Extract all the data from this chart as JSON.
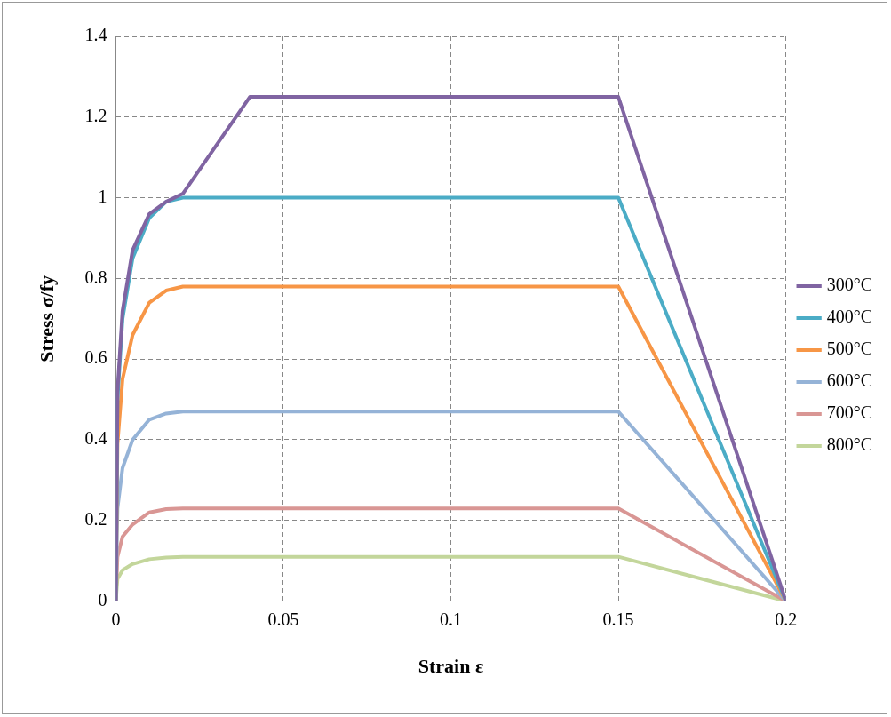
{
  "chart_data": {
    "type": "line",
    "xlabel": "Strain ε",
    "ylabel": "Stress σ/fy",
    "xlim": [
      0,
      0.2
    ],
    "ylim": [
      0,
      1.4
    ],
    "xticks": [
      0,
      0.05,
      0.1,
      0.15,
      0.2
    ],
    "yticks": [
      0,
      0.2,
      0.4,
      0.6,
      0.8,
      1,
      1.2,
      1.4
    ],
    "grid": true,
    "legend": "right",
    "marker": "none",
    "line_style": "solid",
    "x": [
      0,
      0.0005,
      0.002,
      0.005,
      0.01,
      0.015,
      0.02,
      0.15,
      0.2
    ],
    "series": [
      {
        "name": "300°C",
        "color": "#8064a2",
        "x": [
          0,
          0.0005,
          0.002,
          0.005,
          0.01,
          0.015,
          0.02,
          0.04,
          0.15,
          0.2
        ],
        "values": [
          0,
          0.52,
          0.72,
          0.87,
          0.96,
          0.99,
          1.01,
          1.25,
          1.25,
          0
        ]
      },
      {
        "name": "400°C",
        "color": "#4bacc6",
        "values": [
          0,
          0.5,
          0.7,
          0.85,
          0.95,
          0.99,
          1,
          1,
          0
        ]
      },
      {
        "name": "500°C",
        "color": "#f79646",
        "values": [
          0,
          0.39,
          0.55,
          0.66,
          0.74,
          0.77,
          0.78,
          0.78,
          0
        ]
      },
      {
        "name": "600°C",
        "color": "#95b3d7",
        "values": [
          0,
          0.23,
          0.33,
          0.4,
          0.45,
          0.465,
          0.47,
          0.47,
          0
        ]
      },
      {
        "name": "700°C",
        "color": "#d99694",
        "values": [
          0,
          0.11,
          0.16,
          0.19,
          0.22,
          0.228,
          0.23,
          0.23,
          0
        ]
      },
      {
        "name": "800°C",
        "color": "#c3d69b",
        "values": [
          0,
          0.055,
          0.077,
          0.092,
          0.104,
          0.108,
          0.11,
          0.11,
          0
        ]
      }
    ]
  }
}
